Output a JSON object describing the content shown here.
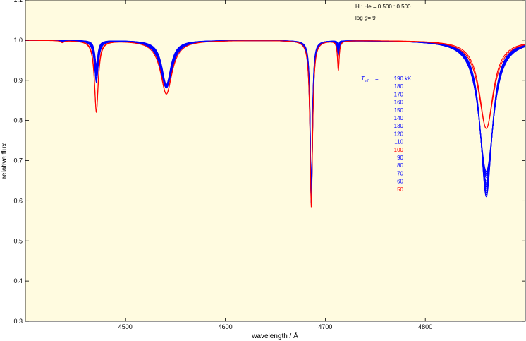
{
  "chart_data": {
    "type": "line",
    "title": "",
    "xlabel": "wavelength / Å",
    "ylabel": "relative flux",
    "xlim": [
      4400,
      4900
    ],
    "ylim": [
      0.3,
      1.1
    ],
    "xticks": [
      4500,
      4600,
      4700,
      4800
    ],
    "yticks": [
      "0.3",
      "0.4",
      "0.5",
      "0.6",
      "0.7",
      "0.8",
      "0.9",
      "1.0",
      "1.1"
    ],
    "background": "#fffbe0",
    "grid": false,
    "legend_placement": "right, below annotations",
    "annotations": {
      "abundance": "H : He = 0.500 : 0.500",
      "gravity_label": "log g",
      "gravity_value": "= 9",
      "teff_label": "T",
      "teff_sub": "eff",
      "teff_eq": "=",
      "unit": "kK"
    },
    "legend_entries": [
      {
        "label": "190",
        "teff_kK": 190,
        "color": "#0000ff"
      },
      {
        "label": "180",
        "teff_kK": 180,
        "color": "#0000ff"
      },
      {
        "label": "170",
        "teff_kK": 170,
        "color": "#0000ff"
      },
      {
        "label": "160",
        "teff_kK": 160,
        "color": "#0000ff"
      },
      {
        "label": "150",
        "teff_kK": 150,
        "color": "#0000ff"
      },
      {
        "label": "140",
        "teff_kK": 140,
        "color": "#0000ff"
      },
      {
        "label": "130",
        "teff_kK": 130,
        "color": "#0000ff"
      },
      {
        "label": "120",
        "teff_kK": 120,
        "color": "#0000ff"
      },
      {
        "label": "110",
        "teff_kK": 110,
        "color": "#0000ff"
      },
      {
        "label": "100",
        "teff_kK": 100,
        "color": "#ff0000"
      },
      {
        "label": "90",
        "teff_kK": 90,
        "color": "#0000ff"
      },
      {
        "label": "80",
        "teff_kK": 80,
        "color": "#0000ff"
      },
      {
        "label": "70",
        "teff_kK": 70,
        "color": "#0000ff"
      },
      {
        "label": "60",
        "teff_kK": 60,
        "color": "#0000ff"
      },
      {
        "label": "50",
        "teff_kK": 50,
        "color": "#ff0000"
      }
    ],
    "lines_min_flux": {
      "wavelengths": [
        4437,
        4471,
        4541,
        4686,
        4713,
        4861
      ],
      "red_models": [
        0.995,
        0.822,
        0.866,
        0.585,
        0.926,
        0.78
      ],
      "blue_models": [
        1.0,
        0.94,
        0.89,
        0.6,
        0.99,
        0.61
      ]
    }
  }
}
